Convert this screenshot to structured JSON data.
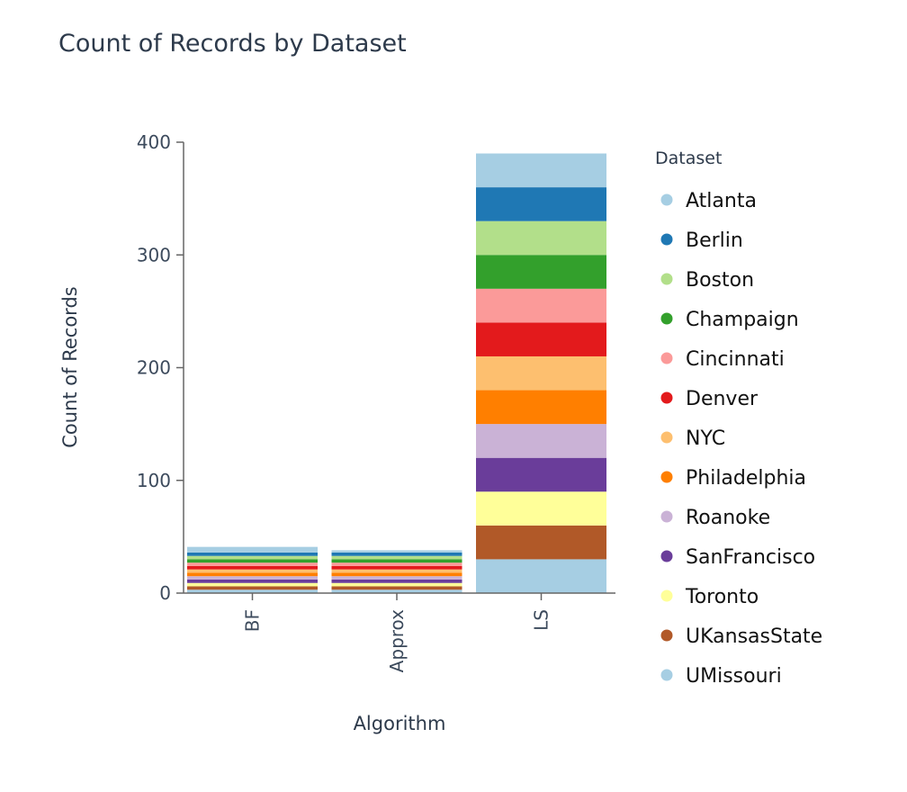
{
  "chart_data": {
    "type": "bar",
    "stacked": true,
    "title": "Count of Records by Dataset",
    "xlabel": "Algorithm",
    "ylabel": "Count of Records",
    "ylim": [
      0,
      400
    ],
    "yticks": [
      0,
      100,
      200,
      300,
      400
    ],
    "categories": [
      "BF",
      "Approx",
      "LS"
    ],
    "legend_title": "Dataset",
    "legend_position": "right",
    "grid": false,
    "series": [
      {
        "name": "UMissouri",
        "color": "#a6cee3",
        "values": [
          3,
          3,
          30
        ]
      },
      {
        "name": "UKansasState",
        "color": "#b15928",
        "values": [
          3,
          3,
          30
        ]
      },
      {
        "name": "Toronto",
        "color": "#ffff99",
        "values": [
          3,
          3,
          30
        ]
      },
      {
        "name": "SanFrancisco",
        "color": "#6a3d9a",
        "values": [
          3,
          3,
          30
        ]
      },
      {
        "name": "Roanoke",
        "color": "#cab2d6",
        "values": [
          3,
          3,
          30
        ]
      },
      {
        "name": "Philadelphia",
        "color": "#ff7f00",
        "values": [
          3,
          3,
          30
        ]
      },
      {
        "name": "NYC",
        "color": "#fdbf6f",
        "values": [
          3,
          3,
          30
        ]
      },
      {
        "name": "Denver",
        "color": "#e31a1c",
        "values": [
          3,
          3,
          30
        ]
      },
      {
        "name": "Cincinnati",
        "color": "#fb9a99",
        "values": [
          3,
          3,
          30
        ]
      },
      {
        "name": "Champaign",
        "color": "#33a02c",
        "values": [
          3,
          3,
          30
        ]
      },
      {
        "name": "Boston",
        "color": "#b2df8a",
        "values": [
          3,
          3,
          30
        ]
      },
      {
        "name": "Berlin",
        "color": "#1f78b4",
        "values": [
          3,
          3,
          30
        ]
      },
      {
        "name": "Atlanta",
        "color": "#a6cee3",
        "values": [
          5,
          2,
          30
        ]
      }
    ],
    "legend_order": [
      "Atlanta",
      "Berlin",
      "Boston",
      "Champaign",
      "Cincinnati",
      "Denver",
      "NYC",
      "Philadelphia",
      "Roanoke",
      "SanFrancisco",
      "Toronto",
      "UKansasState",
      "UMissouri"
    ]
  }
}
